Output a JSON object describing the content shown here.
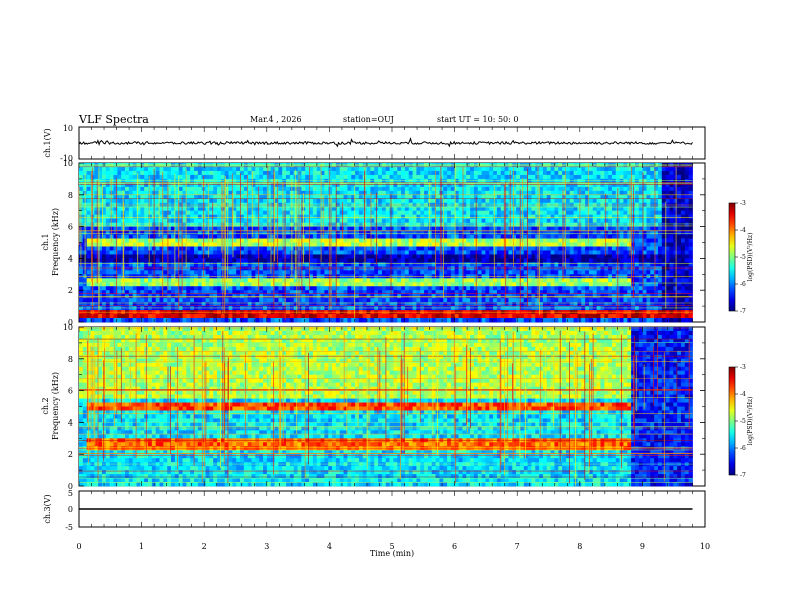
{
  "header": {
    "title": "VLF Spectra",
    "date": "Mar.4 , 2026",
    "station": "station=OUJ",
    "start_ut": "start UT = 10: 50: 0"
  },
  "chart_data": [
    {
      "type": "line",
      "panel": "ch1-waveform",
      "ylabel": "ch.1(V)",
      "ylim": [
        -10,
        10
      ],
      "y_ticks": [
        "10",
        "-10"
      ],
      "x": [
        0,
        0.5,
        1,
        1.5,
        2,
        2.5,
        3,
        3.5,
        4,
        4.5,
        5,
        5.5,
        6,
        6.5,
        7,
        7.5,
        8,
        8.5,
        9,
        9.5,
        9.8
      ],
      "values": [
        0,
        0,
        0,
        0,
        0,
        0,
        0,
        0,
        0,
        0,
        0,
        0,
        0,
        0,
        0,
        0,
        0,
        0,
        0,
        0,
        0
      ],
      "xlim": [
        0,
        10
      ]
    },
    {
      "type": "heatmap",
      "panel": "ch1-spectrogram",
      "ylabel": "Frequency (kHz)",
      "ylabel_channel": "ch.1",
      "ylim": [
        0,
        10
      ],
      "y_ticks": [
        "0",
        "2",
        "4",
        "6",
        "8",
        "10"
      ],
      "xlim": [
        0,
        10
      ],
      "data_end_min": 9.8,
      "colorbar": {
        "label": "log(PSD)(V²/Hz)",
        "range": [
          -7,
          -3
        ],
        "ticks": [
          "-3",
          "-4",
          "-5",
          "-6",
          "-7"
        ]
      },
      "bands_khz": [
        {
          "from": 4.7,
          "to": 5.2,
          "start_min": 0.1,
          "end_min": 8.8,
          "level": -4.8
        },
        {
          "from": 2.3,
          "to": 2.8,
          "start_min": 0.1,
          "end_min": 8.8,
          "level": -4.9
        },
        {
          "from": 0.3,
          "to": 0.7,
          "start_min": 0,
          "end_min": 9.8,
          "level": -3.4
        },
        {
          "from": 3.8,
          "to": 4.3,
          "start_min": 0,
          "end_min": 9.8,
          "level": -6.8
        }
      ]
    },
    {
      "type": "heatmap",
      "panel": "ch2-spectrogram",
      "ylabel": "Frequency (kHz)",
      "ylabel_channel": "ch.2",
      "ylim": [
        0,
        10
      ],
      "y_ticks": [
        "0",
        "2",
        "4",
        "6",
        "8",
        "10"
      ],
      "xlim": [
        0,
        10
      ],
      "data_end_min": 9.8,
      "colorbar": {
        "label": "log(PSD)(V²/Hz)",
        "range": [
          -7,
          -3
        ],
        "ticks": [
          "-3",
          "-4",
          "-5",
          "-6",
          "-7"
        ]
      },
      "bands_khz": [
        {
          "from": 4.7,
          "to": 5.3,
          "start_min": 0.1,
          "end_min": 8.8,
          "level": -3.8
        },
        {
          "from": 2.3,
          "to": 2.9,
          "start_min": 0.1,
          "end_min": 8.8,
          "level": -3.9
        },
        {
          "from": 5.5,
          "to": 10,
          "start_min": 0,
          "end_min": 8.8,
          "level": -4.8
        }
      ]
    },
    {
      "type": "line",
      "panel": "ch3-waveform",
      "ylabel": "ch.3(V)",
      "ylim": [
        -5,
        5
      ],
      "y_ticks": [
        "5",
        "0",
        "-5"
      ],
      "x": [
        0,
        9.8
      ],
      "values": [
        0,
        0
      ],
      "xlim": [
        0,
        10
      ]
    }
  ],
  "x_axis": {
    "label": "Time (min)",
    "ticks": [
      "0",
      "1",
      "2",
      "3",
      "4",
      "5",
      "6",
      "7",
      "8",
      "9",
      "10"
    ]
  }
}
